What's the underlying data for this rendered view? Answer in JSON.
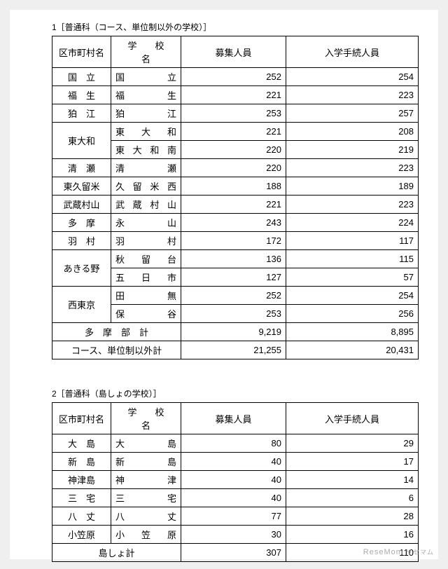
{
  "section1": {
    "title": "1［普通科（コース、単位制以外の学校）］",
    "headers": {
      "city": "区市町村名",
      "school": "学　　校　　名",
      "recruit": "募集人員",
      "enroll": "入学手続人員"
    },
    "rows": [
      {
        "city": "国　立",
        "school": "国　　　　立",
        "recruit": "252",
        "enroll": "254"
      },
      {
        "city": "福　生",
        "school": "福　　　　生",
        "recruit": "221",
        "enroll": "223"
      },
      {
        "city": "狛　江",
        "school": "狛　　　　江",
        "recruit": "253",
        "enroll": "257"
      },
      {
        "city": "東大和",
        "school": "東　大　和",
        "recruit": "221",
        "enroll": "208"
      },
      {
        "city": "",
        "school": "東 大 和 南",
        "recruit": "220",
        "enroll": "219"
      },
      {
        "city": "清　瀬",
        "school": "清　　　　瀬",
        "recruit": "220",
        "enroll": "223"
      },
      {
        "city": "東久留米",
        "school": "久 留 米 西",
        "recruit": "188",
        "enroll": "189"
      },
      {
        "city": "武蔵村山",
        "school": "武 蔵 村 山",
        "recruit": "221",
        "enroll": "223"
      },
      {
        "city": "多　摩",
        "school": "永　　　　山",
        "recruit": "243",
        "enroll": "224"
      },
      {
        "city": "羽　村",
        "school": "羽　　　　村",
        "recruit": "172",
        "enroll": "117"
      },
      {
        "city": "あきる野",
        "school": "秋　留　台",
        "recruit": "136",
        "enroll": "115"
      },
      {
        "city": "",
        "school": "五　日　市",
        "recruit": "127",
        "enroll": "57"
      },
      {
        "city": "西東京",
        "school": "田　　　　無",
        "recruit": "252",
        "enroll": "254"
      },
      {
        "city": "",
        "school": "保　　　　谷",
        "recruit": "253",
        "enroll": "256"
      }
    ],
    "subtotals": [
      {
        "label": "多　摩　部　計",
        "recruit": "9,219",
        "enroll": "8,895"
      },
      {
        "label": "コース、単位制以外計",
        "recruit": "21,255",
        "enroll": "20,431"
      }
    ]
  },
  "section2": {
    "title": "2［普通科（島しょの学校）］",
    "headers": {
      "city": "区市町村名",
      "school": "学　　校　　名",
      "recruit": "募集人員",
      "enroll": "入学手続人員"
    },
    "rows": [
      {
        "city": "大　島",
        "school": "大　　　　島",
        "recruit": "80",
        "enroll": "29"
      },
      {
        "city": "新　島",
        "school": "新　　　　島",
        "recruit": "40",
        "enroll": "17"
      },
      {
        "city": "神津島",
        "school": "神　　　　津",
        "recruit": "40",
        "enroll": "14"
      },
      {
        "city": "三　宅",
        "school": "三　　　　宅",
        "recruit": "40",
        "enroll": "6"
      },
      {
        "city": "八　丈",
        "school": "八　　　　丈",
        "recruit": "77",
        "enroll": "28"
      },
      {
        "city": "小笠原",
        "school": "小　笠　原",
        "recruit": "30",
        "enroll": "16"
      }
    ],
    "subtotals": [
      {
        "label": "島しょ計",
        "recruit": "307",
        "enroll": "110"
      }
    ]
  },
  "watermark": {
    "text": "ReseMom",
    "suffix": "リセマム"
  }
}
